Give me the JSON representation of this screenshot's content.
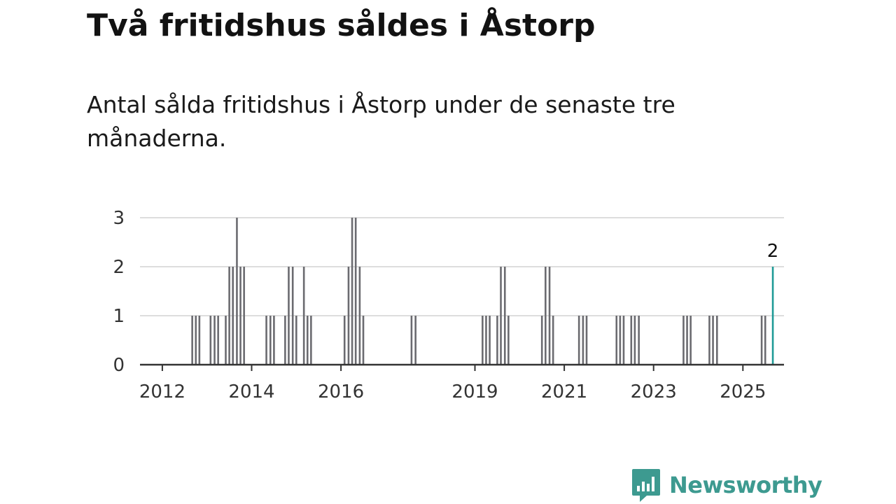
{
  "title": "Två fritidshus såldes i Åstorp",
  "subtitle": "Antal sålda fritidshus i Åstorp under de senaste tre månaderna.",
  "brand": {
    "name": "Newsworthy",
    "color": "#3d9a90",
    "icon": "newsworthy-chart-icon"
  },
  "chart_data": {
    "type": "bar",
    "xlabel": "",
    "ylabel": "",
    "ylim": [
      0,
      3
    ],
    "xlim": [
      2011.5,
      2025.92
    ],
    "yticks": [
      0,
      1,
      2,
      3
    ],
    "xticks": [
      {
        "value": 2012,
        "label": "2012"
      },
      {
        "value": 2014,
        "label": "2014"
      },
      {
        "value": 2016,
        "label": "2016"
      },
      {
        "value": 2019,
        "label": "2019"
      },
      {
        "value": 2021,
        "label": "2021"
      },
      {
        "value": 2023,
        "label": "2023"
      },
      {
        "value": 2025,
        "label": "2025"
      }
    ],
    "grid": true,
    "bar_color": "#6b6b70",
    "highlight_color": "#1f9a96",
    "annotation": {
      "x": 2025.67,
      "value": 2,
      "label": "2"
    },
    "points": [
      {
        "x": 2012.67,
        "value": 1
      },
      {
        "x": 2012.75,
        "value": 1
      },
      {
        "x": 2012.83,
        "value": 1
      },
      {
        "x": 2013.08,
        "value": 1
      },
      {
        "x": 2013.17,
        "value": 1
      },
      {
        "x": 2013.25,
        "value": 1
      },
      {
        "x": 2013.42,
        "value": 1
      },
      {
        "x": 2013.5,
        "value": 2
      },
      {
        "x": 2013.58,
        "value": 2
      },
      {
        "x": 2013.67,
        "value": 3
      },
      {
        "x": 2013.75,
        "value": 2
      },
      {
        "x": 2013.83,
        "value": 2
      },
      {
        "x": 2014.33,
        "value": 1
      },
      {
        "x": 2014.42,
        "value": 1
      },
      {
        "x": 2014.5,
        "value": 1
      },
      {
        "x": 2014.75,
        "value": 1
      },
      {
        "x": 2014.83,
        "value": 2
      },
      {
        "x": 2014.92,
        "value": 2
      },
      {
        "x": 2015.0,
        "value": 1
      },
      {
        "x": 2015.17,
        "value": 2
      },
      {
        "x": 2015.25,
        "value": 1
      },
      {
        "x": 2015.33,
        "value": 1
      },
      {
        "x": 2016.08,
        "value": 1
      },
      {
        "x": 2016.17,
        "value": 2
      },
      {
        "x": 2016.25,
        "value": 3
      },
      {
        "x": 2016.33,
        "value": 3
      },
      {
        "x": 2016.42,
        "value": 2
      },
      {
        "x": 2016.5,
        "value": 1
      },
      {
        "x": 2017.58,
        "value": 1
      },
      {
        "x": 2017.67,
        "value": 1
      },
      {
        "x": 2019.17,
        "value": 1
      },
      {
        "x": 2019.25,
        "value": 1
      },
      {
        "x": 2019.33,
        "value": 1
      },
      {
        "x": 2019.5,
        "value": 1
      },
      {
        "x": 2019.58,
        "value": 2
      },
      {
        "x": 2019.67,
        "value": 2
      },
      {
        "x": 2019.75,
        "value": 1
      },
      {
        "x": 2020.5,
        "value": 1
      },
      {
        "x": 2020.58,
        "value": 2
      },
      {
        "x": 2020.67,
        "value": 2
      },
      {
        "x": 2020.75,
        "value": 1
      },
      {
        "x": 2021.33,
        "value": 1
      },
      {
        "x": 2021.42,
        "value": 1
      },
      {
        "x": 2021.5,
        "value": 1
      },
      {
        "x": 2022.17,
        "value": 1
      },
      {
        "x": 2022.25,
        "value": 1
      },
      {
        "x": 2022.33,
        "value": 1
      },
      {
        "x": 2022.5,
        "value": 1
      },
      {
        "x": 2022.58,
        "value": 1
      },
      {
        "x": 2022.67,
        "value": 1
      },
      {
        "x": 2023.67,
        "value": 1
      },
      {
        "x": 2023.75,
        "value": 1
      },
      {
        "x": 2023.83,
        "value": 1
      },
      {
        "x": 2024.25,
        "value": 1
      },
      {
        "x": 2024.33,
        "value": 1
      },
      {
        "x": 2024.42,
        "value": 1
      },
      {
        "x": 2025.42,
        "value": 1
      },
      {
        "x": 2025.5,
        "value": 1
      },
      {
        "x": 2025.67,
        "value": 2,
        "highlight": true
      }
    ]
  }
}
